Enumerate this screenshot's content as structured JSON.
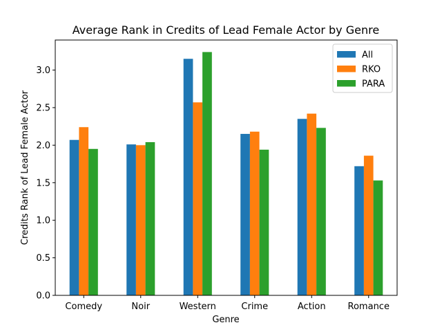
{
  "chart_data": {
    "type": "bar",
    "title": "Average Rank in Credits of Lead Female Actor by Genre",
    "xlabel": "Genre",
    "ylabel": "Credits Rank of Lead Female Actor",
    "categories": [
      "Comedy",
      "Noir",
      "Western",
      "Crime",
      "Action",
      "Romance"
    ],
    "series": [
      {
        "name": "All",
        "color": "#1f77b4",
        "values": [
          2.07,
          2.01,
          3.15,
          2.15,
          2.35,
          1.72
        ]
      },
      {
        "name": "RKO",
        "color": "#ff7f0e",
        "values": [
          2.24,
          2.0,
          2.57,
          2.18,
          2.42,
          1.86
        ]
      },
      {
        "name": "PARA",
        "color": "#2ca02c",
        "values": [
          1.95,
          2.04,
          3.24,
          1.94,
          2.23,
          1.53
        ]
      }
    ],
    "ylim": [
      0,
      3.4
    ],
    "yticks": [
      "0.0",
      "0.5",
      "1.0",
      "1.5",
      "2.0",
      "2.5",
      "3.0"
    ],
    "grid": false,
    "legend_position": "top-right"
  }
}
